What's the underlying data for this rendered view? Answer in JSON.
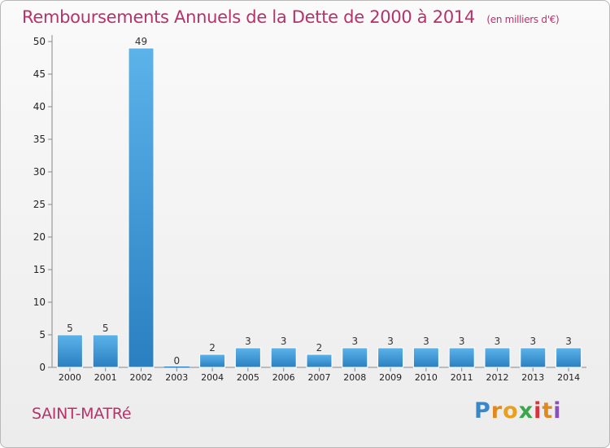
{
  "chart_data": {
    "type": "bar",
    "title": "Remboursements Annuels de la Dette de 2000 à 2014",
    "subtitle": "(en milliers d'€)",
    "categories": [
      "2000",
      "2001",
      "2002",
      "2003",
      "2004",
      "2005",
      "2006",
      "2007",
      "2008",
      "2009",
      "2010",
      "2011",
      "2012",
      "2013",
      "2014"
    ],
    "values": [
      5,
      5,
      49,
      0,
      2,
      3,
      3,
      2,
      3,
      3,
      3,
      3,
      3,
      3,
      3
    ],
    "ylim": [
      0,
      50
    ],
    "yticks": [
      0,
      5,
      10,
      15,
      20,
      25,
      30,
      35,
      40,
      45,
      50
    ],
    "grid": false,
    "bar_color": "#3a95d6",
    "xlabel": "",
    "ylabel": ""
  },
  "footer": {
    "commune": "SAINT-MATRé",
    "logo_letters": [
      "P",
      "r",
      "o",
      "x",
      "i",
      "t",
      "i"
    ],
    "logo_colors": [
      "#3a87c8",
      "#e08a1e",
      "#e8a020",
      "#3aa84a",
      "#d8323a",
      "#e08a1e",
      "#8a4fb8"
    ]
  }
}
